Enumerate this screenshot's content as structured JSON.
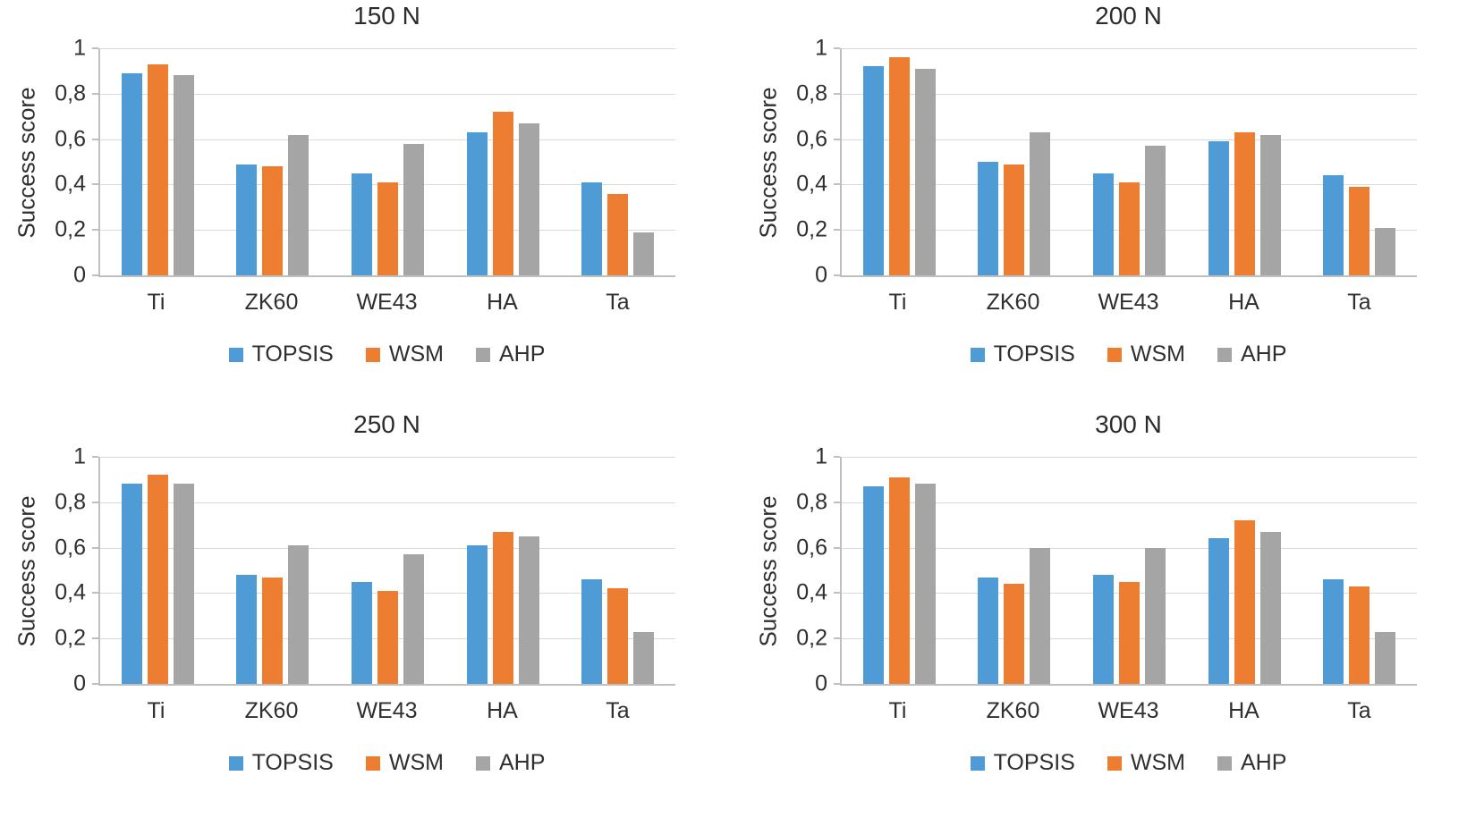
{
  "page": {
    "background": "#ffffff"
  },
  "series_colors": {
    "TOPSIS": "#4f9bd5",
    "WSM": "#ed7d31",
    "AHP": "#a5a5a5"
  },
  "chart_data": [
    {
      "type": "bar",
      "title": "150 N",
      "xlabel": "",
      "ylabel": "Success score",
      "ylim": [
        0,
        1
      ],
      "grid": true,
      "legend_position": "bottom",
      "ytick_values": [
        0,
        0.2,
        0.4,
        0.6,
        0.8,
        1
      ],
      "ytick_labels": [
        "0",
        "0,2",
        "0,4",
        "0,6",
        "0,8",
        "1"
      ],
      "categories": [
        "Ti",
        "ZK60",
        "WE43",
        "HA",
        "Ta"
      ],
      "series": [
        {
          "name": "TOPSIS",
          "color": "#4f9bd5",
          "values": [
            0.89,
            0.49,
            0.45,
            0.63,
            0.41
          ]
        },
        {
          "name": "WSM",
          "color": "#ed7d31",
          "values": [
            0.93,
            0.48,
            0.41,
            0.72,
            0.36
          ]
        },
        {
          "name": "AHP",
          "color": "#a5a5a5",
          "values": [
            0.88,
            0.62,
            0.58,
            0.67,
            0.19
          ]
        }
      ]
    },
    {
      "type": "bar",
      "title": "200 N",
      "xlabel": "",
      "ylabel": "Success score",
      "ylim": [
        0,
        1
      ],
      "grid": true,
      "legend_position": "bottom",
      "ytick_values": [
        0,
        0.2,
        0.4,
        0.6,
        0.8,
        1
      ],
      "ytick_labels": [
        "0",
        "0,2",
        "0,4",
        "0,6",
        "0,8",
        "1"
      ],
      "categories": [
        "Ti",
        "ZK60",
        "WE43",
        "HA",
        "Ta"
      ],
      "series": [
        {
          "name": "TOPSIS",
          "color": "#4f9bd5",
          "values": [
            0.92,
            0.5,
            0.45,
            0.59,
            0.44
          ]
        },
        {
          "name": "WSM",
          "color": "#ed7d31",
          "values": [
            0.96,
            0.49,
            0.41,
            0.63,
            0.39
          ]
        },
        {
          "name": "AHP",
          "color": "#a5a5a5",
          "values": [
            0.91,
            0.63,
            0.57,
            0.62,
            0.21
          ]
        }
      ]
    },
    {
      "type": "bar",
      "title": "250 N",
      "xlabel": "",
      "ylabel": "Success score",
      "ylim": [
        0,
        1
      ],
      "grid": true,
      "legend_position": "bottom",
      "ytick_values": [
        0,
        0.2,
        0.4,
        0.6,
        0.8,
        1
      ],
      "ytick_labels": [
        "0",
        "0,2",
        "0,4",
        "0,6",
        "0,8",
        "1"
      ],
      "categories": [
        "Ti",
        "ZK60",
        "WE43",
        "HA",
        "Ta"
      ],
      "series": [
        {
          "name": "TOPSIS",
          "color": "#4f9bd5",
          "values": [
            0.88,
            0.48,
            0.45,
            0.61,
            0.46
          ]
        },
        {
          "name": "WSM",
          "color": "#ed7d31",
          "values": [
            0.92,
            0.47,
            0.41,
            0.67,
            0.42
          ]
        },
        {
          "name": "AHP",
          "color": "#a5a5a5",
          "values": [
            0.88,
            0.61,
            0.57,
            0.65,
            0.23
          ]
        }
      ]
    },
    {
      "type": "bar",
      "title": "300 N",
      "xlabel": "",
      "ylabel": "Success score",
      "ylim": [
        0,
        1
      ],
      "grid": true,
      "legend_position": "bottom",
      "ytick_values": [
        0,
        0.2,
        0.4,
        0.6,
        0.8,
        1
      ],
      "ytick_labels": [
        "0",
        "0,2",
        "0,4",
        "0,6",
        "0,8",
        "1"
      ],
      "categories": [
        "Ti",
        "ZK60",
        "WE43",
        "HA",
        "Ta"
      ],
      "series": [
        {
          "name": "TOPSIS",
          "color": "#4f9bd5",
          "values": [
            0.87,
            0.47,
            0.48,
            0.64,
            0.46
          ]
        },
        {
          "name": "WSM",
          "color": "#ed7d31",
          "values": [
            0.91,
            0.44,
            0.45,
            0.72,
            0.43
          ]
        },
        {
          "name": "AHP",
          "color": "#a5a5a5",
          "values": [
            0.88,
            0.6,
            0.6,
            0.67,
            0.23
          ]
        }
      ]
    }
  ]
}
